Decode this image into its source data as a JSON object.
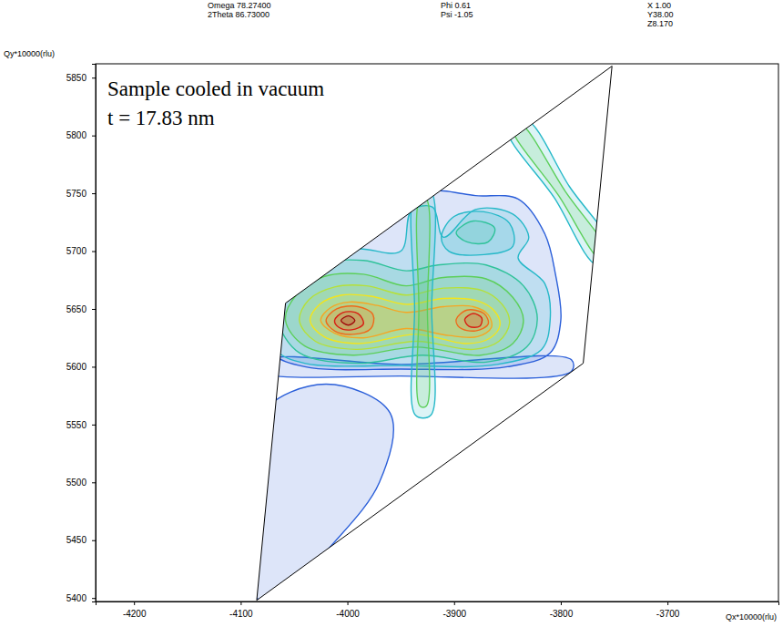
{
  "chart_data": {
    "type": "contour",
    "header": [
      [
        "Omega 78.27400",
        "2Theta 86.73000"
      ],
      [
        "Phi 0.61",
        "Psi -1.05"
      ],
      [
        "X 1.00",
        "Y38.00",
        "Z8.170"
      ]
    ],
    "annotations": [
      "Sample cooled in vacuum",
      "t = 17.83 nm"
    ],
    "x_label": "Qx*10000(rlu)",
    "y_label": "Qy*10000(rlu)",
    "xlim": [
      -4236,
      -3596
    ],
    "xticks": [
      -4200,
      -4100,
      -4000,
      -3900,
      -3800,
      -3700
    ],
    "ylim": [
      5397,
      5862
    ],
    "yticks": [
      5400,
      5450,
      5500,
      5550,
      5600,
      5650,
      5700,
      5750,
      5800,
      5850
    ],
    "scan_area": {
      "x": [
        -4085,
        -4058,
        -3752,
        -3779
      ],
      "y": [
        5398,
        5655,
        5860,
        5603
      ]
    },
    "contours": [
      {
        "color": "#2b5fd9",
        "x": [
          -4085,
          -4090,
          -4080,
          -4020,
          -3960,
          -3970,
          -4020,
          -4060
        ],
        "y": [
          5400,
          5480,
          5560,
          5585,
          5560,
          5500,
          5440,
          5400
        ]
      },
      {
        "color": "#2b5fd9",
        "x": [
          -4074,
          -4066,
          -4035,
          -3990,
          -3950,
          -3935,
          -3910,
          -3880,
          -3840,
          -3815,
          -3805,
          -3800,
          -3810,
          -3850,
          -3950,
          -4040,
          -4070
        ],
        "y": [
          5640,
          5676,
          5702,
          5712,
          5728,
          5752,
          5752,
          5748,
          5745,
          5715,
          5680,
          5640,
          5612,
          5600,
          5598,
          5600,
          5612
        ]
      },
      {
        "color": "#2b5fd9",
        "x": [
          -4075,
          -3950,
          -3790,
          -3790,
          -3950,
          -4080
        ],
        "y": [
          5606,
          5602,
          5606,
          5596,
          5592,
          5596
        ]
      },
      {
        "color": "#25b8c8",
        "x": [
          -4070,
          -4062,
          -4035,
          -3990,
          -3950,
          -3940,
          -3920,
          -3910,
          -3880,
          -3845,
          -3830,
          -3840,
          -3815,
          -3810,
          -3818,
          -3860,
          -3950,
          -4040,
          -4066
        ],
        "y": [
          5640,
          5672,
          5695,
          5702,
          5700,
          5735,
          5738,
          5712,
          5736,
          5732,
          5712,
          5694,
          5672,
          5640,
          5615,
          5602,
          5601,
          5603,
          5614
        ]
      },
      {
        "color": "#25b8c8",
        "x": [
          -3912,
          -3900,
          -3872,
          -3848,
          -3845,
          -3872,
          -3905
        ],
        "y": [
          5712,
          5730,
          5734,
          5724,
          5704,
          5697,
          5700
        ]
      },
      {
        "color": "#25b8c8",
        "x": [
          -3850,
          -3806,
          -3766,
          -3750,
          -3792,
          -3833
        ],
        "y": [
          5806,
          5746,
          5688,
          5698,
          5756,
          5814
        ]
      },
      {
        "color": "#2fc29a",
        "x": [
          -4065,
          -4060,
          -4030,
          -3985,
          -3945,
          -3915,
          -3870,
          -3835,
          -3822,
          -3832,
          -3870,
          -3930,
          -3990,
          -4045
        ],
        "y": [
          5640,
          5668,
          5688,
          5692,
          5683,
          5688,
          5688,
          5670,
          5642,
          5617,
          5604,
          5610,
          5603,
          5612
        ]
      },
      {
        "color": "#2fc29a",
        "x": [
          -3898,
          -3882,
          -3862,
          -3868,
          -3888
        ],
        "y": [
          5716,
          5726,
          5720,
          5708,
          5708
        ]
      },
      {
        "color": "#5ccf5a",
        "x": [
          -4058,
          -4048,
          -4022,
          -3985,
          -3945,
          -3912,
          -3870,
          -3845,
          -3835,
          -3845,
          -3875,
          -3935,
          -3995,
          -4040
        ],
        "y": [
          5640,
          5662,
          5678,
          5680,
          5670,
          5677,
          5676,
          5660,
          5640,
          5620,
          5610,
          5617,
          5610,
          5618
        ]
      },
      {
        "color": "#5ccf5a",
        "x": [
          -3845,
          -3802,
          -3762,
          -3755,
          -3796,
          -3838
        ],
        "y": [
          5806,
          5748,
          5692,
          5696,
          5752,
          5810
        ]
      },
      {
        "color": "#b5e03a",
        "x": [
          -4045,
          -4036,
          -4012,
          -3982,
          -3945,
          -3910,
          -3874,
          -3855,
          -3848,
          -3858,
          -3882,
          -3935,
          -3992,
          -4030
        ],
        "y": [
          5640,
          5658,
          5669,
          5670,
          5662,
          5668,
          5666,
          5654,
          5638,
          5622,
          5615,
          5622,
          5615,
          5622
        ]
      },
      {
        "color": "#f2e41c",
        "x": [
          -4035,
          -4026,
          -4005,
          -3978,
          -3945,
          -3910,
          -3878,
          -3862,
          -3857,
          -3866,
          -3888,
          -3935,
          -3990,
          -4022
        ],
        "y": [
          5640,
          5654,
          5662,
          5661,
          5654,
          5659,
          5657,
          5648,
          5636,
          5625,
          5620,
          5628,
          5620,
          5626
        ]
      },
      {
        "color": "#f5a623",
        "x": [
          -4025,
          -4016,
          -3998,
          -3972,
          -3945,
          -3910,
          -3882,
          -3868,
          -3865,
          -3878,
          -3905,
          -3945,
          -3985,
          -4012
        ],
        "y": [
          5640,
          5651,
          5656,
          5653,
          5647,
          5652,
          5652,
          5645,
          5634,
          5626,
          5627,
          5633,
          5625,
          5629
        ]
      },
      {
        "color": "#ef6a1a",
        "x": [
          -4020,
          -4010,
          -3990,
          -3976,
          -3978,
          -3995,
          -4012
        ],
        "y": [
          5640,
          5650,
          5652,
          5645,
          5633,
          5628,
          5631
        ]
      },
      {
        "color": "#ef6a1a",
        "x": [
          -3898,
          -3888,
          -3872,
          -3868,
          -3880,
          -3895
        ],
        "y": [
          5641,
          5649,
          5646,
          5637,
          5631,
          5634
        ]
      },
      {
        "color": "#d81e12",
        "x": [
          -4012,
          -4004,
          -3990,
          -3985,
          -3996,
          -4008
        ],
        "y": [
          5640,
          5647,
          5646,
          5637,
          5632,
          5634
        ]
      },
      {
        "color": "#d81e12",
        "x": [
          -3890,
          -3882,
          -3874,
          -3876,
          -3886
        ],
        "y": [
          5641,
          5646,
          5642,
          5635,
          5635
        ]
      },
      {
        "color": "#a00c0c",
        "x": [
          -4006,
          -3999,
          -3993,
          -3999
        ],
        "y": [
          5640,
          5644,
          5640,
          5636
        ]
      },
      {
        "color": "#25b8c8",
        "x": [
          -3936,
          -3937,
          -3936,
          -3922,
          -3921,
          -3922
        ],
        "y": [
          5558,
          5650,
          5752,
          5752,
          5650,
          5558
        ]
      },
      {
        "color": "#5ccf5a",
        "x": [
          -3932,
          -3933,
          -3932,
          -3926,
          -3925,
          -3926
        ],
        "y": [
          5566,
          5650,
          5745,
          5745,
          5650,
          5566
        ]
      }
    ]
  }
}
